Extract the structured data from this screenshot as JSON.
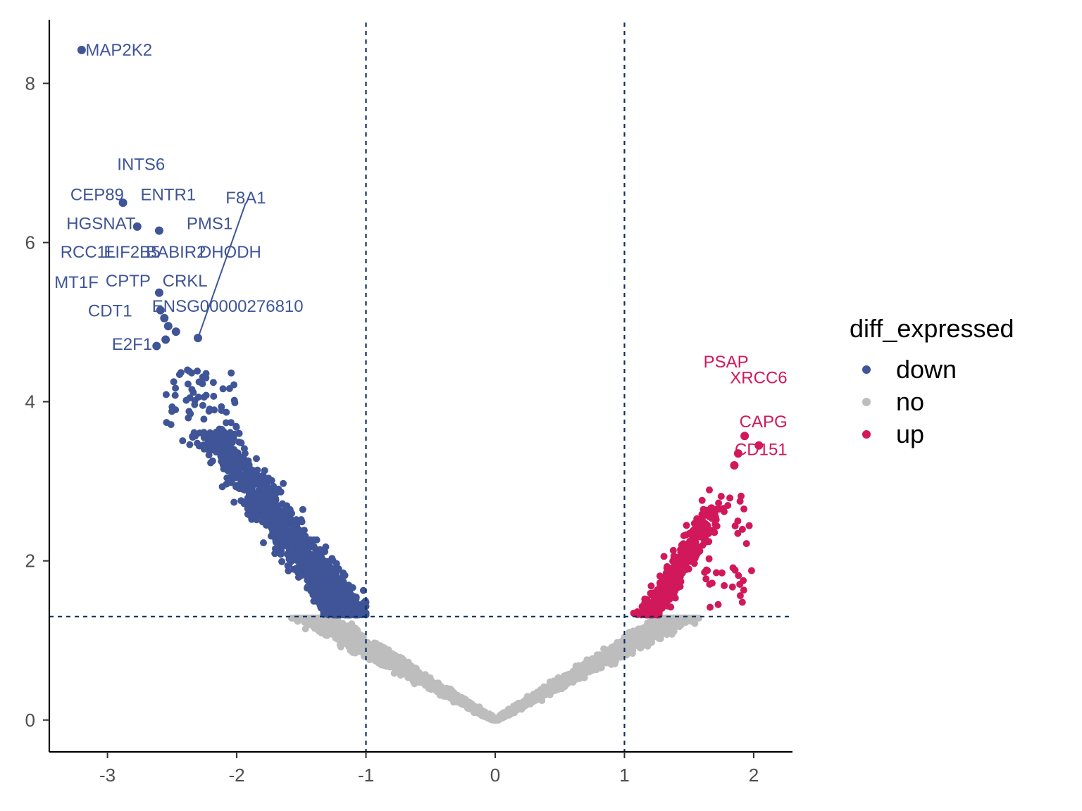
{
  "chart_data": {
    "type": "scatter",
    "title": "",
    "xlabel": "",
    "ylabel": "",
    "xlim": [
      -3.45,
      2.3
    ],
    "ylim": [
      -0.4,
      8.8
    ],
    "x_ticks": [
      -3,
      -2,
      -1,
      0,
      1,
      2
    ],
    "y_ticks": [
      0,
      2,
      4,
      6,
      8
    ],
    "thresholds": {
      "x": [
        -1,
        1
      ],
      "y": 1.3
    },
    "grid": false,
    "legend": {
      "title": "diff_expressed",
      "position": "right",
      "entries": [
        {
          "label": "down",
          "color": "#3F5597"
        },
        {
          "label": "no",
          "color": "#BDBDBD"
        },
        {
          "label": "up",
          "color": "#D1185A"
        }
      ]
    },
    "colors": {
      "down": "#3F5597",
      "no": "#BDBDBD",
      "up": "#D1185A",
      "threshold_line": "#0B3060"
    },
    "highlighted_points": [
      {
        "gene": "MAP2K2",
        "x": -3.2,
        "y": 8.42,
        "group": "down"
      },
      {
        "gene": "CEP89",
        "x": -2.88,
        "y": 6.5,
        "group": "down"
      },
      {
        "gene": "HGSNAT",
        "x": -2.77,
        "y": 6.2,
        "group": "down"
      },
      {
        "gene": "ENTR1",
        "x": -2.6,
        "y": 6.15,
        "group": "down"
      },
      {
        "gene": "CRKL",
        "x": -2.6,
        "y": 5.37,
        "group": "down"
      },
      {
        "gene": "ENSG00000276810",
        "x": -2.59,
        "y": 5.15,
        "group": "down"
      },
      {
        "gene": "DHODH",
        "x": -2.56,
        "y": 5.05,
        "group": "down"
      },
      {
        "gene": "PMS1",
        "x": -2.53,
        "y": 4.95,
        "group": "down"
      },
      {
        "gene": "BABIR2",
        "x": -2.47,
        "y": 4.88,
        "group": "down"
      },
      {
        "gene": "E2F1",
        "x": -2.62,
        "y": 4.7,
        "group": "down"
      },
      {
        "gene": "CDT1",
        "x": -2.55,
        "y": 4.78,
        "group": "down"
      },
      {
        "gene": "F8A1",
        "x": -2.3,
        "y": 4.8,
        "group": "down"
      },
      {
        "gene": "PSAP",
        "x": 2.04,
        "y": 3.45,
        "group": "up"
      },
      {
        "gene": "XRCC6",
        "x": 1.93,
        "y": 3.57,
        "group": "up"
      },
      {
        "gene": "CAPG",
        "x": 1.88,
        "y": 3.35,
        "group": "up"
      },
      {
        "gene": "CD151",
        "x": 1.85,
        "y": 3.2,
        "group": "up"
      }
    ],
    "labels": [
      {
        "text": "MAP2K2",
        "x": -3.17,
        "y": 8.42,
        "group": "down",
        "anchor": "start"
      },
      {
        "text": "INTS6",
        "x": -2.74,
        "y": 6.98,
        "group": "down",
        "anchor": "middle"
      },
      {
        "text": "CEP89",
        "x": -3.08,
        "y": 6.6,
        "group": "down",
        "anchor": "middle"
      },
      {
        "text": "ENTR1",
        "x": -2.53,
        "y": 6.6,
        "group": "down",
        "anchor": "middle"
      },
      {
        "text": "F8A1",
        "x": -1.93,
        "y": 6.56,
        "group": "down",
        "anchor": "middle"
      },
      {
        "text": "HGSNAT",
        "x": -3.05,
        "y": 6.24,
        "group": "down",
        "anchor": "middle"
      },
      {
        "text": "PMS1",
        "x": -2.21,
        "y": 6.24,
        "group": "down",
        "anchor": "middle"
      },
      {
        "text": "RCC1L",
        "x": -3.15,
        "y": 5.88,
        "group": "down",
        "anchor": "middle"
      },
      {
        "text": "EIF2B5",
        "x": -2.81,
        "y": 5.88,
        "group": "down",
        "anchor": "middle"
      },
      {
        "text": "BABIR2",
        "x": -2.47,
        "y": 5.88,
        "group": "down",
        "anchor": "middle"
      },
      {
        "text": "DHODH",
        "x": -2.05,
        "y": 5.88,
        "group": "down",
        "anchor": "middle"
      },
      {
        "text": "MT1F",
        "x": -3.24,
        "y": 5.5,
        "group": "down",
        "anchor": "middle"
      },
      {
        "text": "CPTP",
        "x": -2.84,
        "y": 5.52,
        "group": "down",
        "anchor": "middle"
      },
      {
        "text": "CRKL",
        "x": -2.4,
        "y": 5.52,
        "group": "down",
        "anchor": "middle"
      },
      {
        "text": "ENSG00000276810",
        "x": -2.07,
        "y": 5.2,
        "group": "down",
        "anchor": "middle"
      },
      {
        "text": "CDT1",
        "x": -2.98,
        "y": 5.14,
        "group": "down",
        "anchor": "middle"
      },
      {
        "text": "E2F1",
        "x": -2.81,
        "y": 4.72,
        "group": "down",
        "anchor": "middle"
      },
      {
        "text": "PSAP",
        "x": 1.96,
        "y": 4.5,
        "group": "up",
        "anchor": "end"
      },
      {
        "text": "XRCC6",
        "x": 2.26,
        "y": 4.3,
        "group": "up",
        "anchor": "end"
      },
      {
        "text": "CAPG",
        "x": 2.26,
        "y": 3.75,
        "group": "up",
        "anchor": "end"
      },
      {
        "text": "CD151",
        "x": 2.26,
        "y": 3.4,
        "group": "up",
        "anchor": "end"
      }
    ],
    "connectors": [
      {
        "from_x": -2.3,
        "from_y": 4.8,
        "to_x": -1.93,
        "to_y": 6.5
      }
    ]
  }
}
